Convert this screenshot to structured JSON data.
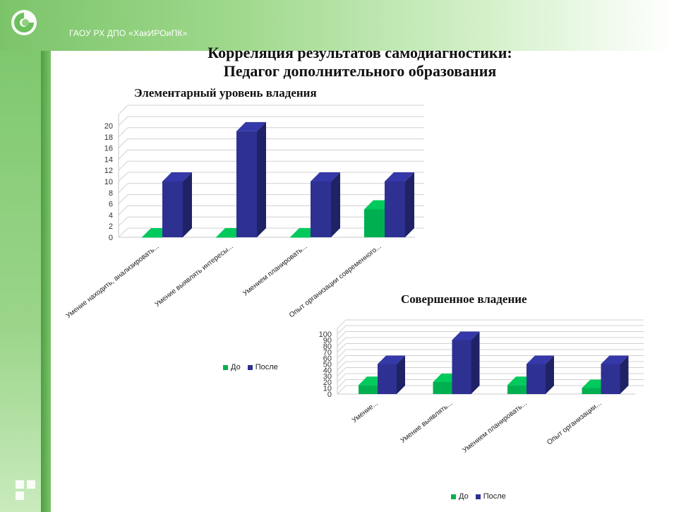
{
  "header": {
    "org": "ГАОУ РХ ДПО «ХакИРОиПК»"
  },
  "title_line1": "Корреляция результатов самодиагностики:",
  "title_line2": "Педагог дополнительного образования",
  "colors": {
    "before": "#00b050",
    "after": "#2e3192",
    "grid": "#d9d9d9"
  },
  "chart_data": [
    {
      "type": "bar",
      "title": "Элементарный уровень владения",
      "categories": [
        "Умение находить, анализировать...",
        "Умение выявлять интересы...",
        "Умением планировать...",
        "Опыт организации современного..."
      ],
      "series": [
        {
          "name": "До",
          "values": [
            0,
            0,
            0,
            5
          ]
        },
        {
          "name": "После",
          "values": [
            10,
            19,
            10,
            10
          ]
        }
      ],
      "yticks": [
        "0",
        "2",
        "4",
        "6",
        "8",
        "10",
        "12",
        "14",
        "16",
        "18",
        "20"
      ],
      "ylim": [
        0,
        20
      ],
      "grid": true,
      "legend": "bottom"
    },
    {
      "type": "bar",
      "title": "Совершенное владение",
      "categories": [
        "Умение...",
        "Умение выявлять...",
        "Умением планировать...",
        "Опыт организации..."
      ],
      "series": [
        {
          "name": "До",
          "values": [
            15,
            20,
            15,
            10
          ]
        },
        {
          "name": "После",
          "values": [
            50,
            90,
            50,
            50
          ]
        }
      ],
      "yticks": [
        "0",
        "10",
        "20",
        "30",
        "40",
        "50",
        "60",
        "70",
        "80",
        "90",
        "100"
      ],
      "ylim": [
        0,
        100
      ],
      "grid": true,
      "legend": "bottom"
    }
  ]
}
